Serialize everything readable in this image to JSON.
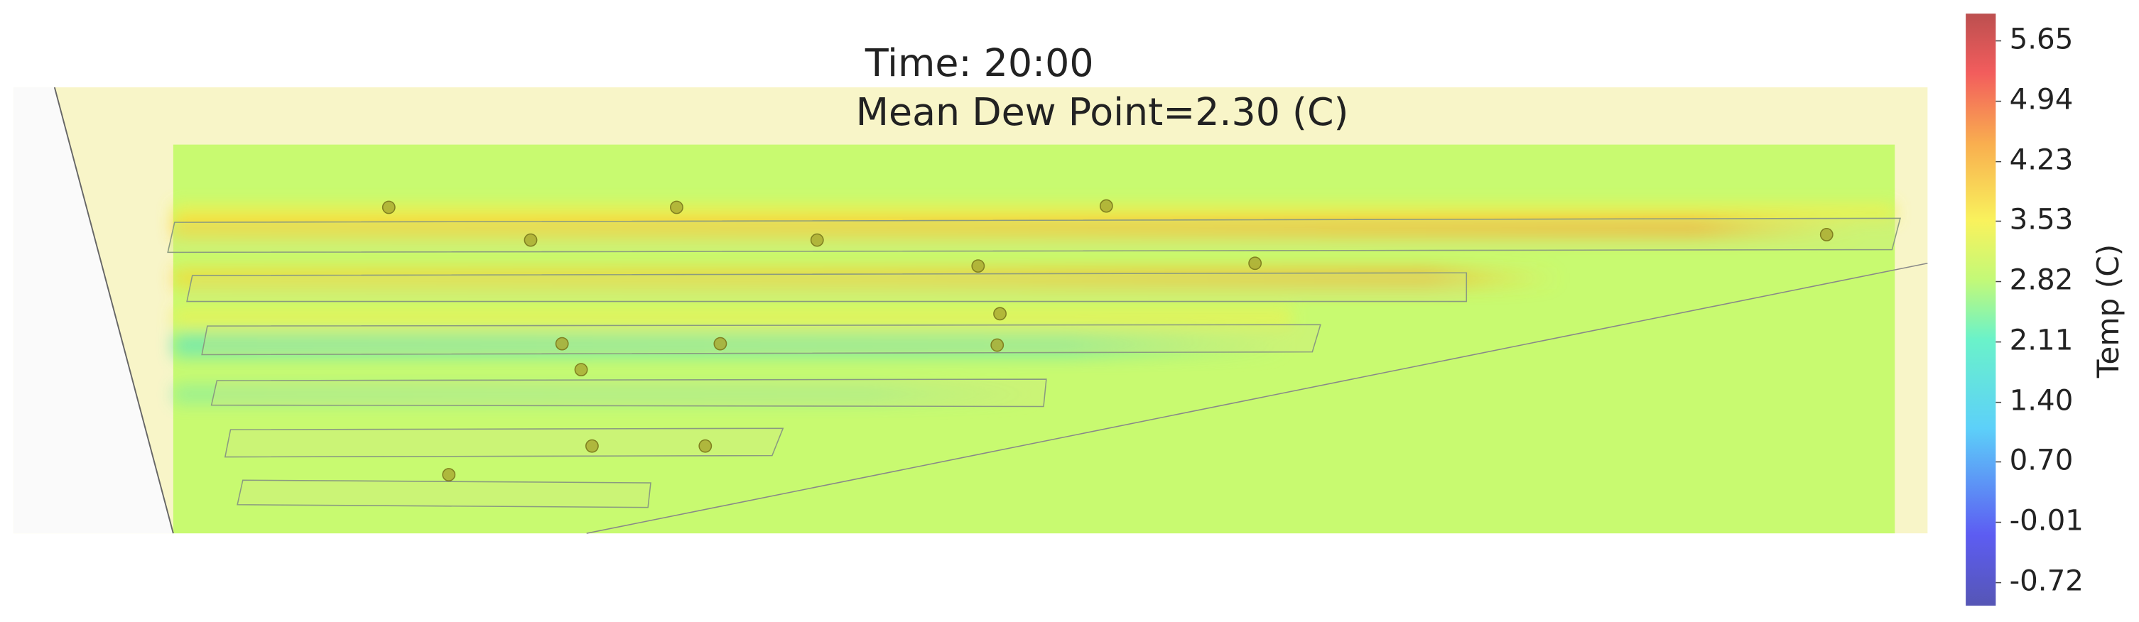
{
  "chart_data": {
    "type": "heatmap",
    "title": "Time: 20:00",
    "subtitle": "Mean Dew Point=2.30 (C)",
    "colorbar_label": "Temp (C)",
    "clim": [
      -0.99,
      5.97
    ],
    "cticks": [
      -0.72,
      -0.01,
      {
        "value": 0.7,
        "label": "0.70"
      },
      {
        "value": 1.4,
        "label": "1.40"
      },
      2.11,
      2.82,
      3.53,
      4.23,
      4.94,
      5.65
    ]
  }
}
